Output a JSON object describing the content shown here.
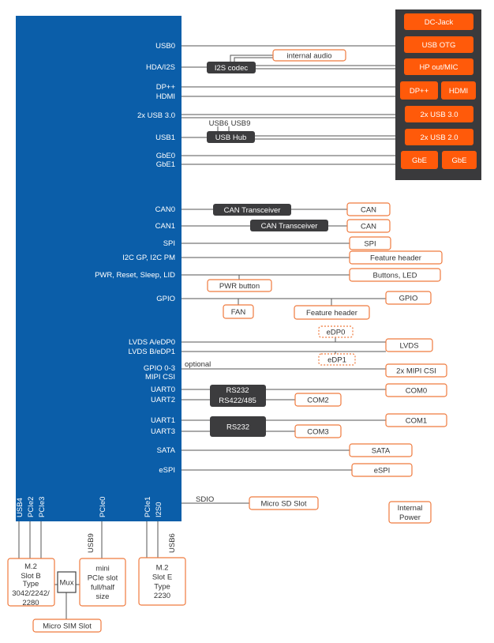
{
  "colors": {
    "soc_blue": "#0b5ea9",
    "connector_orange": "#ff5a0a",
    "outline_orange": "#ef7a3e",
    "chip_dark": "#3c3c3e",
    "panel_dark": "#3a3a3c",
    "line": "#555555"
  },
  "soc_signals": {
    "usb0": "USB0",
    "hda_i2s": "HDA/I2S",
    "dp": "DP++",
    "hdmi": "HDMI",
    "usb30": "2x USB 3.0",
    "usb1": "USB1",
    "gbe0": "GbE0",
    "gbe1": "GbE1",
    "can0": "CAN0",
    "can1": "CAN1",
    "spi": "SPI",
    "i2c": "I2C GP, I2C PM",
    "pwr": "PWR, Reset, Sleep, LID",
    "gpio": "GPIO",
    "lvds_a": "LVDS A/eDP0",
    "lvds_b": "LVDS B/eDP1",
    "gpio03": "GPIO 0-3",
    "mipi": "MIPI CSI",
    "uart0": "UART0",
    "uart2": "UART2",
    "uart1": "UART1",
    "uart3": "UART3",
    "sata": "SATA",
    "espi": "eSPI"
  },
  "soc_bottom": {
    "usb4": "USB4",
    "pcie2": "PCIe2",
    "pcie3": "PCIe3",
    "pcie0": "PCIe0",
    "pcie1": "PCIe1",
    "i2s0": "I2S0"
  },
  "external_panel": {
    "dc_jack": "DC-Jack",
    "usb_otg": "USB OTG",
    "hp_mic": "HP out/MIC",
    "dp": "DP++",
    "hdmi": "HDMI",
    "usb30": "2x USB 3.0",
    "usb20": "2x USB 2.0",
    "gbe1": "GbE",
    "gbe2": "GbE"
  },
  "chips": {
    "i2s_codec": "I2S codec",
    "usb_hub": "USB Hub",
    "can_transceiver_0": "CAN Transceiver",
    "can_transceiver_1": "CAN Transceiver",
    "rs232_a": "RS232",
    "rs422": "RS422/485",
    "rs232_b": "RS232",
    "mux": "Mux"
  },
  "connectors": {
    "internal_audio": "internal audio",
    "can0": "CAN",
    "can1": "CAN",
    "spi": "SPI",
    "feature_header_1": "Feature header",
    "buttons_led": "Buttons, LED",
    "pwr_button": "PWR button",
    "gpio": "GPIO",
    "fan": "FAN",
    "feature_header_2": "Feature header",
    "edp0": "eDP0",
    "lvds": "LVDS",
    "edp1": "eDP1",
    "mipi_csi": "2x MIPI CSI",
    "com0": "COM0",
    "com2": "COM2",
    "com1": "COM1",
    "com3": "COM3",
    "sata": "SATA",
    "espi": "eSPI",
    "micro_sd": "Micro SD Slot",
    "internal_power": [
      "Internal",
      "Power"
    ],
    "m2_slot_b": [
      "M.2",
      "Slot B"
    ],
    "m2_slot_b_type": [
      "Type",
      "3042/2242/",
      "2280"
    ],
    "mini_pcie": [
      "mini",
      "PCIe slot",
      "full/half",
      "size"
    ],
    "m2_slot_e": [
      "M.2",
      "Slot E",
      "Type",
      "2230"
    ],
    "micro_sim": "Micro SIM Slot"
  },
  "annotations": {
    "usb6": "USB6",
    "usb9": "USB9",
    "optional": "optional",
    "sdio": "SDIO",
    "usb9_mini": "USB9",
    "usb6_m2e": "USB6"
  }
}
